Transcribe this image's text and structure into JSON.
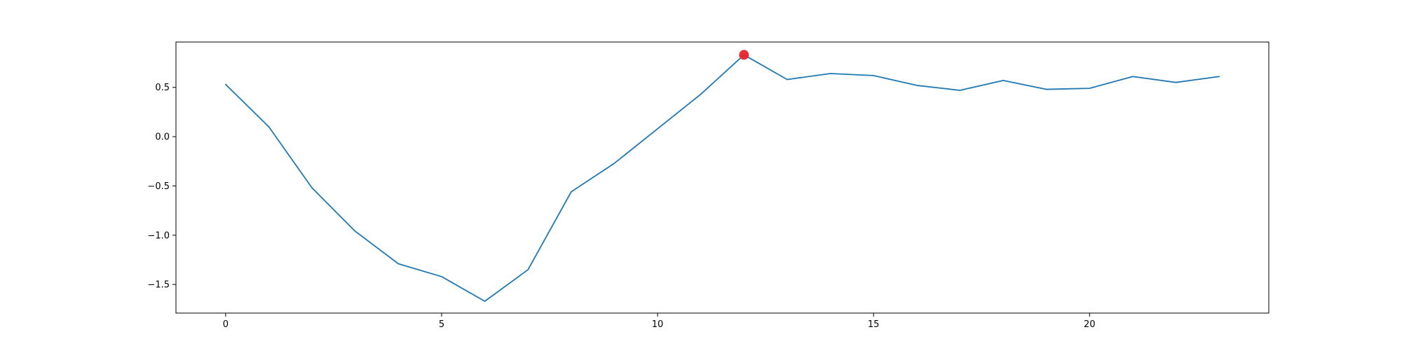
{
  "chart_data": {
    "type": "line",
    "title": "",
    "xlabel": "",
    "ylabel": "",
    "xlim": [
      -1.15,
      24.15
    ],
    "ylim": [
      -1.79,
      0.96
    ],
    "grid": false,
    "legend": "none",
    "x_ticks": [
      0,
      5,
      10,
      15,
      20
    ],
    "x_tick_labels": [
      "0",
      "5",
      "10",
      "15",
      "20"
    ],
    "y_ticks": [
      0.5,
      0.0,
      -0.5,
      -1.0,
      -1.5
    ],
    "y_tick_labels": [
      "0.5",
      "0.0",
      "−0.5",
      "−1.0",
      "−1.5"
    ],
    "series": [
      {
        "color": "#1f77b4",
        "x": [
          0,
          1,
          2,
          3,
          4,
          5,
          6,
          7,
          8,
          9,
          10,
          11,
          12,
          13,
          14,
          15,
          16,
          17,
          18,
          19,
          20,
          21,
          22,
          23
        ],
        "y": [
          0.53,
          0.1,
          -0.52,
          -0.96,
          -1.29,
          -1.42,
          -1.67,
          -1.35,
          -0.56,
          -0.27,
          0.08,
          0.43,
          0.83,
          0.58,
          0.64,
          0.62,
          0.52,
          0.47,
          0.57,
          0.48,
          0.49,
          0.61,
          0.55,
          0.61
        ]
      }
    ],
    "highlight_point": {
      "x": 12,
      "y": 0.83,
      "color": "#e8242b"
    }
  }
}
